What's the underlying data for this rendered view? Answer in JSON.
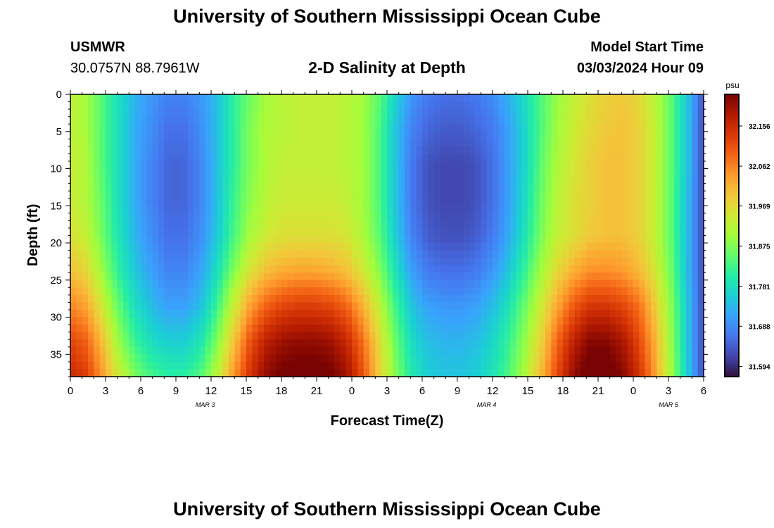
{
  "header": {
    "title": "University of Southern Mississippi Ocean Cube",
    "station": "USMWR",
    "coords": "30.0757N  88.7961W",
    "subtitle": "2-D Salinity at Depth",
    "model_start_label": "Model Start Time",
    "model_start_value": "03/03/2024 Hour 09"
  },
  "footer": {
    "title": "University of Southern Mississippi Ocean Cube"
  },
  "chart_data": {
    "type": "heatmap",
    "title": "2-D Salinity at Depth",
    "xlabel": "Forecast Time(Z)",
    "ylabel": "Depth (ft)",
    "x_tick_labels": [
      "0",
      "3",
      "6",
      "9",
      "12",
      "15",
      "18",
      "21",
      "0",
      "3",
      "6",
      "9",
      "12",
      "15",
      "18",
      "21",
      "0",
      "3",
      "6"
    ],
    "x_hours_since_start": [
      0,
      3,
      6,
      9,
      12,
      15,
      18,
      21,
      24,
      27,
      30,
      33,
      36,
      39,
      42,
      45,
      48,
      51,
      54
    ],
    "xlim_hours": [
      0,
      54
    ],
    "date_labels": [
      {
        "label": "MAR 3",
        "hour": 11.5
      },
      {
        "label": "MAR 4",
        "hour": 35.5
      },
      {
        "label": "MAR 5",
        "hour": 51
      }
    ],
    "y_ticks": [
      0,
      5,
      10,
      15,
      20,
      25,
      30,
      35
    ],
    "ylim": [
      0,
      38
    ],
    "y_inverted": true,
    "colorbar": {
      "unit": "psu",
      "ticks": [
        31.594,
        31.688,
        31.781,
        31.875,
        31.969,
        32.062,
        32.156
      ],
      "range": [
        31.57,
        32.23
      ],
      "colormap": [
        "#30123b",
        "#4145ab",
        "#4675ed",
        "#39a2fc",
        "#1bcfd4",
        "#24eca6",
        "#61fc6c",
        "#a4fc3b",
        "#d1e834",
        "#f3c63a",
        "#fe9b2d",
        "#f36315",
        "#d93806",
        "#b11901",
        "#7a0403"
      ]
    },
    "values_psu": [
      [
        31.93,
        31.9,
        31.84,
        31.78,
        31.73,
        31.7,
        31.68,
        31.68,
        31.7,
        31.74,
        31.81,
        31.86,
        31.9,
        31.92,
        31.93,
        31.93,
        31.93,
        31.92,
        31.9,
        31.85,
        31.77,
        31.7,
        31.67,
        31.66,
        31.66,
        31.67,
        31.69,
        31.73,
        31.78,
        31.84,
        31.89,
        31.93,
        31.96,
        31.98,
        31.99,
        31.97,
        31.92,
        31.85,
        31.75,
        31.63
      ],
      [
        31.93,
        31.9,
        31.84,
        31.78,
        31.72,
        31.69,
        31.66,
        31.66,
        31.69,
        31.74,
        31.81,
        31.87,
        31.91,
        31.92,
        31.93,
        31.93,
        31.93,
        31.92,
        31.9,
        31.84,
        31.75,
        31.68,
        31.65,
        31.64,
        31.64,
        31.65,
        31.67,
        31.71,
        31.77,
        31.84,
        31.9,
        31.94,
        31.97,
        31.99,
        32.0,
        31.98,
        31.93,
        31.85,
        31.75,
        31.62
      ],
      [
        31.94,
        31.91,
        31.84,
        31.78,
        31.72,
        31.68,
        31.65,
        31.65,
        31.68,
        31.74,
        31.81,
        31.87,
        31.91,
        31.93,
        31.93,
        31.93,
        31.93,
        31.92,
        31.9,
        31.84,
        31.75,
        31.67,
        31.63,
        31.62,
        31.62,
        31.63,
        31.66,
        31.71,
        31.77,
        31.85,
        31.91,
        31.95,
        31.98,
        32.0,
        32.0,
        31.98,
        31.93,
        31.85,
        31.75,
        31.62
      ],
      [
        31.94,
        31.91,
        31.85,
        31.78,
        31.72,
        31.68,
        31.65,
        31.65,
        31.68,
        31.74,
        31.82,
        31.88,
        31.92,
        31.94,
        31.94,
        31.94,
        31.94,
        31.93,
        31.9,
        31.84,
        31.75,
        31.67,
        31.63,
        31.62,
        31.62,
        31.63,
        31.66,
        31.71,
        31.78,
        31.86,
        31.92,
        31.96,
        31.98,
        32.0,
        32.0,
        31.98,
        31.93,
        31.85,
        31.74,
        31.62
      ],
      [
        31.96,
        31.93,
        31.86,
        31.79,
        31.73,
        31.69,
        31.66,
        31.66,
        31.69,
        31.75,
        31.83,
        31.9,
        31.94,
        31.96,
        31.96,
        31.96,
        31.96,
        31.95,
        31.91,
        31.85,
        31.76,
        31.68,
        31.64,
        31.63,
        31.63,
        31.64,
        31.67,
        31.72,
        31.79,
        31.87,
        31.93,
        31.96,
        31.99,
        32.0,
        32.0,
        31.98,
        31.93,
        31.85,
        31.74,
        31.62
      ],
      [
        32.0,
        31.97,
        31.89,
        31.81,
        31.75,
        31.71,
        31.68,
        31.68,
        31.71,
        31.78,
        31.87,
        31.95,
        32.0,
        32.02,
        32.03,
        32.03,
        32.02,
        32.0,
        31.95,
        31.88,
        31.79,
        31.71,
        31.67,
        31.66,
        31.66,
        31.67,
        31.7,
        31.75,
        31.82,
        31.9,
        31.97,
        32.02,
        32.05,
        32.05,
        32.04,
        32.01,
        31.95,
        31.86,
        31.74,
        31.62
      ],
      [
        32.06,
        32.03,
        31.94,
        31.85,
        31.78,
        31.74,
        31.71,
        31.71,
        31.74,
        31.82,
        31.93,
        32.03,
        32.09,
        32.12,
        32.13,
        32.13,
        32.12,
        32.09,
        32.02,
        31.93,
        31.83,
        31.75,
        31.71,
        31.7,
        31.7,
        31.71,
        31.74,
        31.79,
        31.86,
        31.94,
        32.03,
        32.1,
        32.14,
        32.14,
        32.12,
        32.08,
        31.99,
        31.88,
        31.75,
        31.62
      ],
      [
        32.12,
        32.09,
        32.0,
        31.89,
        31.82,
        31.78,
        31.76,
        31.76,
        31.79,
        31.87,
        31.99,
        32.1,
        32.17,
        32.2,
        32.21,
        32.21,
        32.2,
        32.16,
        32.08,
        31.97,
        31.86,
        31.78,
        31.74,
        31.73,
        31.73,
        31.74,
        31.77,
        31.82,
        31.89,
        31.98,
        32.09,
        32.17,
        32.22,
        32.22,
        32.19,
        32.12,
        32.02,
        31.89,
        31.75,
        31.62
      ],
      [
        32.16,
        32.13,
        32.04,
        31.94,
        31.87,
        31.83,
        31.81,
        31.81,
        31.84,
        31.92,
        32.04,
        32.14,
        32.21,
        32.24,
        32.25,
        32.25,
        32.24,
        32.2,
        32.11,
        31.99,
        31.88,
        31.8,
        31.76,
        31.75,
        31.75,
        31.76,
        31.79,
        31.84,
        31.91,
        32.01,
        32.12,
        32.21,
        32.26,
        32.26,
        32.22,
        32.15,
        32.04,
        31.9,
        31.76,
        31.62
      ]
    ]
  }
}
